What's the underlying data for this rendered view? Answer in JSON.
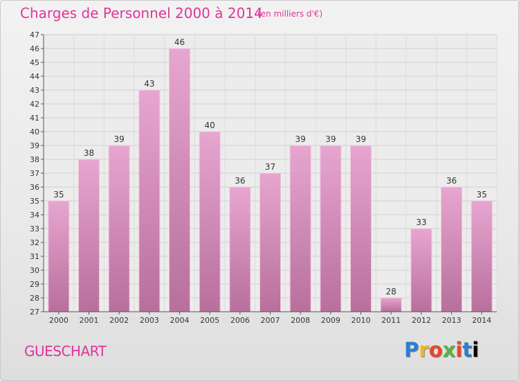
{
  "chart_data": {
    "type": "bar",
    "title": "Charges de Personnel 2000 à 2014",
    "unit": "(en milliers d'€)",
    "categories": [
      "2000",
      "2001",
      "2002",
      "2003",
      "2004",
      "2005",
      "2006",
      "2007",
      "2008",
      "2009",
      "2010",
      "2011",
      "2012",
      "2013",
      "2014"
    ],
    "values": [
      35,
      38,
      39,
      43,
      46,
      40,
      36,
      37,
      39,
      39,
      39,
      28,
      33,
      36,
      35
    ],
    "ylim": [
      27,
      47
    ],
    "yticks": [
      27,
      28,
      29,
      30,
      31,
      32,
      33,
      34,
      35,
      36,
      37,
      38,
      39,
      40,
      41,
      42,
      43,
      44,
      45,
      46,
      47
    ],
    "grid": true,
    "bar_color": "#d98bbd"
  },
  "commune": "GUESCHART",
  "logo": [
    "P",
    "r",
    "o",
    "x",
    "i",
    "t",
    "i"
  ]
}
